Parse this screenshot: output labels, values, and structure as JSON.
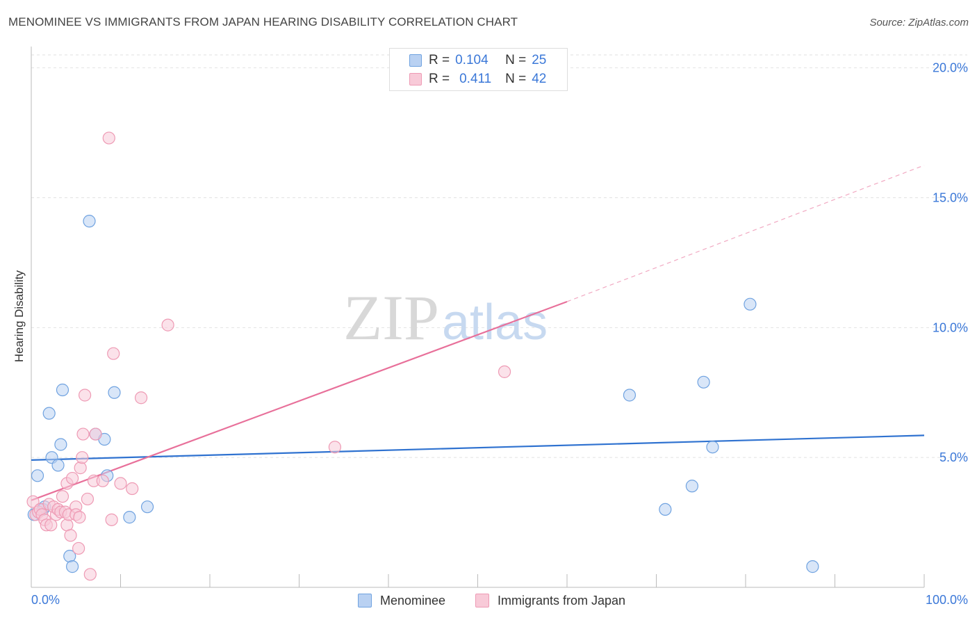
{
  "title": "MENOMINEE VS IMMIGRANTS FROM JAPAN HEARING DISABILITY CORRELATION CHART",
  "source": "Source: ZipAtlas.com",
  "watermark": {
    "zip": "ZIP",
    "atlas": "atlas"
  },
  "legend": {
    "series1": {
      "r_label": "R =",
      "r_value": "0.104",
      "n_label": "N =",
      "n_value": "25"
    },
    "series2": {
      "r_label": "R =",
      "r_value": "0.411",
      "n_label": "N =",
      "n_value": "42"
    }
  },
  "chart_data": {
    "type": "scatter",
    "title": "MENOMINEE VS IMMIGRANTS FROM JAPAN HEARING DISABILITY CORRELATION CHART",
    "xlabel": "",
    "ylabel": "Hearing Disability",
    "xlim": [
      0,
      100
    ],
    "ylim": [
      0,
      20.5
    ],
    "x_tick_labels": [
      "0.0%",
      "100.0%"
    ],
    "y_ticks": [
      5,
      10,
      15,
      20
    ],
    "y_tick_labels": [
      "5.0%",
      "10.0%",
      "15.0%",
      "20.0%"
    ],
    "legend_position": "bottom-center",
    "series": [
      {
        "name": "Menominee",
        "color": "#6fa2e0",
        "fill": "#b9d1f2",
        "line_color": "#2f72d0",
        "trend": {
          "x0": 0,
          "y0": 4.9,
          "x1": 100,
          "y1": 5.85
        },
        "points": [
          [
            0.3,
            2.8
          ],
          [
            0.7,
            4.3
          ],
          [
            1.3,
            3.0
          ],
          [
            1.5,
            3.1
          ],
          [
            2.0,
            6.7
          ],
          [
            2.3,
            5.0
          ],
          [
            3.0,
            4.7
          ],
          [
            3.3,
            5.5
          ],
          [
            3.5,
            7.6
          ],
          [
            4.3,
            1.2
          ],
          [
            4.6,
            0.8
          ],
          [
            6.5,
            14.1
          ],
          [
            7.2,
            5.9
          ],
          [
            8.2,
            5.7
          ],
          [
            8.5,
            4.3
          ],
          [
            9.3,
            7.5
          ],
          [
            11.0,
            2.7
          ],
          [
            13.0,
            3.1
          ],
          [
            67.0,
            7.4
          ],
          [
            71.0,
            3.0
          ],
          [
            74.0,
            3.9
          ],
          [
            75.3,
            7.9
          ],
          [
            76.3,
            5.4
          ],
          [
            80.5,
            10.9
          ],
          [
            87.5,
            0.8
          ]
        ]
      },
      {
        "name": "Immigrants from Japan",
        "color": "#ee9ab4",
        "fill": "#f8cad8",
        "line_color": "#e8709a",
        "trend": {
          "x0": 0,
          "y0": 3.35,
          "x1": 60,
          "y1": 11.0
        },
        "trend_dashed": {
          "x0": 60,
          "y0": 11.0,
          "x1": 100,
          "y1": 16.25
        },
        "points": [
          [
            0.2,
            3.3
          ],
          [
            0.5,
            2.8
          ],
          [
            0.8,
            2.9
          ],
          [
            1.0,
            3.0
          ],
          [
            1.2,
            2.8
          ],
          [
            1.5,
            2.6
          ],
          [
            1.7,
            2.4
          ],
          [
            2.0,
            3.2
          ],
          [
            2.2,
            2.4
          ],
          [
            2.5,
            3.1
          ],
          [
            2.8,
            2.8
          ],
          [
            3.0,
            3.0
          ],
          [
            3.3,
            2.9
          ],
          [
            3.5,
            3.5
          ],
          [
            3.8,
            2.9
          ],
          [
            4.0,
            2.4
          ],
          [
            4.0,
            4.0
          ],
          [
            4.2,
            2.8
          ],
          [
            4.4,
            2.0
          ],
          [
            4.6,
            4.2
          ],
          [
            5.0,
            3.1
          ],
          [
            5.0,
            2.8
          ],
          [
            5.3,
            1.5
          ],
          [
            5.5,
            4.6
          ],
          [
            5.7,
            5.0
          ],
          [
            5.8,
            5.9
          ],
          [
            6.0,
            7.4
          ],
          [
            6.3,
            3.4
          ],
          [
            6.6,
            0.5
          ],
          [
            7.0,
            4.1
          ],
          [
            7.2,
            5.9
          ],
          [
            8.0,
            4.1
          ],
          [
            8.7,
            17.3
          ],
          [
            9.0,
            2.6
          ],
          [
            9.2,
            9.0
          ],
          [
            10.0,
            4.0
          ],
          [
            11.3,
            3.8
          ],
          [
            12.3,
            7.3
          ],
          [
            15.3,
            10.1
          ],
          [
            34.0,
            5.4
          ],
          [
            53.0,
            8.3
          ],
          [
            5.4,
            2.7
          ]
        ]
      }
    ]
  }
}
